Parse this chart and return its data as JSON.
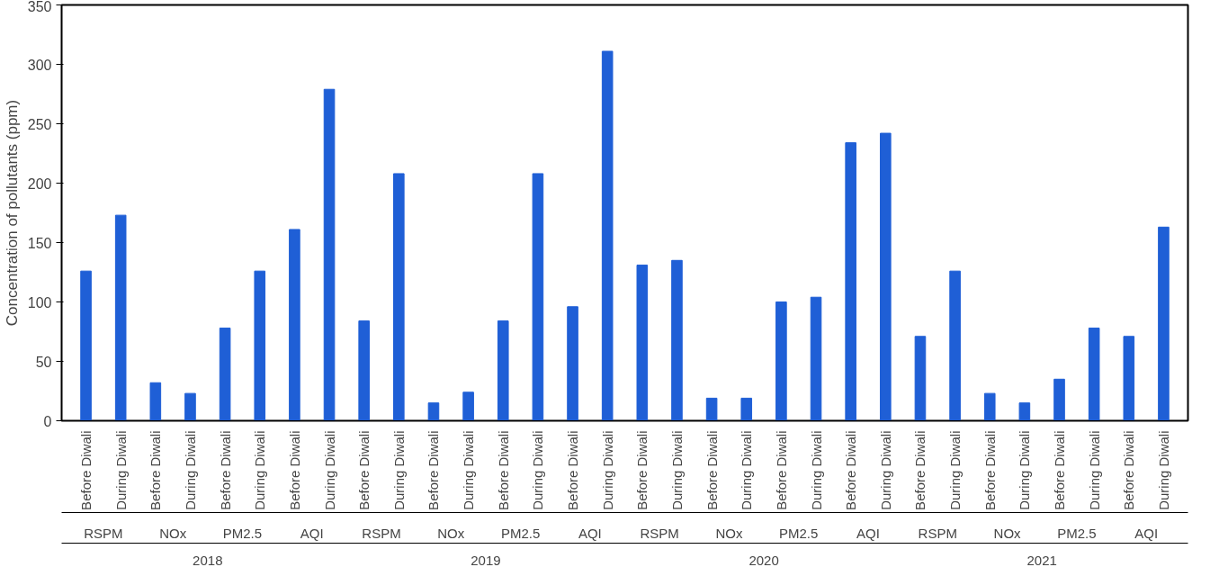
{
  "chart_data": {
    "type": "bar",
    "ylabel": "Concentration of pollutants (ppm)",
    "categories": [
      "Before Diwali",
      "During Diwali",
      "Before Diwali",
      "During Diwali",
      "Before Diwali",
      "During Diwali",
      "Before Diwali",
      "During Diwali",
      "Before Diwali",
      "During Diwali",
      "Before Diwali",
      "During Diwali",
      "Before Diwali",
      "During Diwali",
      "Before Diwali",
      "During Diwali",
      "Before Diwali",
      "During Diwali",
      "Before Diwali",
      "During Diwali",
      "Before Diwali",
      "During Diwali",
      "Before Diwali",
      "During Diwali",
      "Before Diwali",
      "During Diwali",
      "Before Diwali",
      "During Diwali",
      "Before Diwali",
      "During Diwali",
      "Before Diwali",
      "During Diwali"
    ],
    "values": [
      126,
      173,
      32,
      23,
      78,
      126,
      161,
      279,
      84,
      208,
      15,
      24,
      84,
      208,
      96,
      311,
      131,
      135,
      19,
      19,
      100,
      104,
      234,
      242,
      71,
      126,
      23,
      15,
      35,
      78,
      71,
      163
    ],
    "color": "#1f5fd6",
    "annotations": [
      "RSPM",
      "NOx",
      "PM2.5",
      "AQI",
      "RSPM",
      "NOx",
      "PM2.5",
      "AQI",
      "RSPM",
      "NOx",
      "PM2.5",
      "AQI",
      "RSPM",
      "NOx",
      "PM2.5",
      "AQI",
      "2018",
      "2019",
      "2020",
      "2021"
    ],
    "ylim": [
      0,
      350
    ],
    "yticks": [
      0,
      50,
      100,
      150,
      200,
      250,
      300,
      350
    ],
    "grid": false
  }
}
